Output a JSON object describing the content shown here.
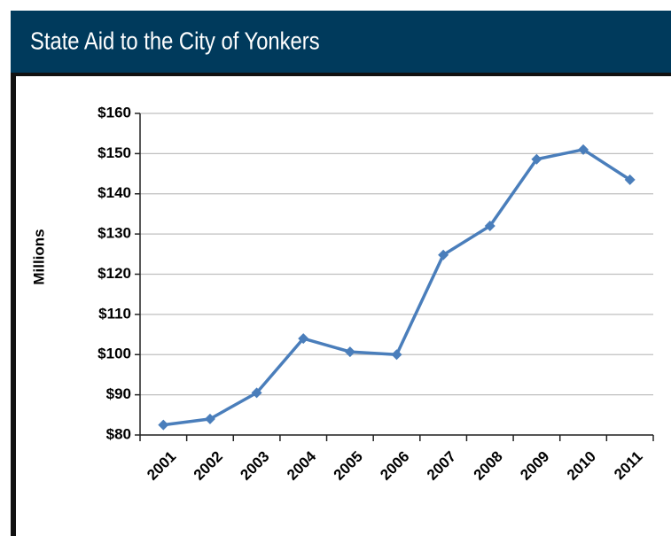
{
  "chart_data": {
    "type": "line",
    "title": "State Aid to the City of Yonkers",
    "y_label": "Millions",
    "categories": [
      "2001",
      "2002",
      "2003",
      "2004",
      "2005",
      "2006",
      "2007",
      "2008",
      "2009",
      "2010",
      "2011"
    ],
    "series": [
      {
        "name": "State Aid",
        "color": "#4a7ebb",
        "values": [
          82.5,
          84,
          90.5,
          104,
          100.7,
          100,
          124.8,
          132,
          148.6,
          151,
          143.5
        ]
      }
    ],
    "ylim": [
      80,
      160
    ],
    "yticks": [
      {
        "value": 80,
        "label": "$80"
      },
      {
        "value": 90,
        "label": "$90"
      },
      {
        "value": 100,
        "label": "$100"
      },
      {
        "value": 110,
        "label": "$110"
      },
      {
        "value": 120,
        "label": "$120"
      },
      {
        "value": 130,
        "label": "$130"
      },
      {
        "value": 140,
        "label": "$140"
      },
      {
        "value": 150,
        "label": "$150"
      },
      {
        "value": 160,
        "label": "$160"
      }
    ],
    "grid": true
  }
}
